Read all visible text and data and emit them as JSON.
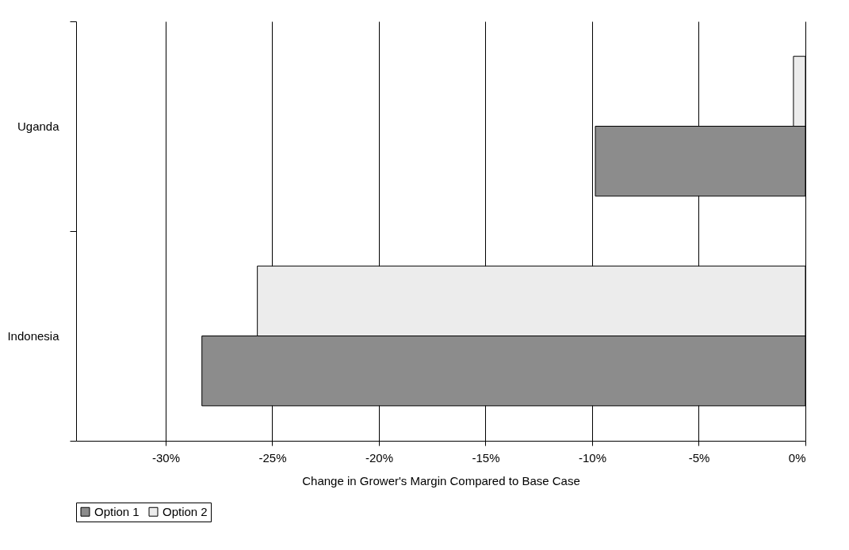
{
  "chart_data": {
    "type": "bar",
    "orientation": "horizontal",
    "xlabel": "Change in Grower's Margin Compared to Base Case",
    "categories": [
      "Uganda",
      "Indonesia"
    ],
    "series": [
      {
        "name": "Option 1",
        "color": "#8c8c8c",
        "values": [
          -9.85,
          -28.3
        ]
      },
      {
        "name": "Option 2",
        "color": "#ececec",
        "values": [
          -0.56,
          -25.7
        ]
      }
    ],
    "xlim": [
      -34.2,
      0
    ],
    "xticks": [
      {
        "value": -30,
        "label": "-30%"
      },
      {
        "value": -25,
        "label": "-25%"
      },
      {
        "value": -20,
        "label": "-20%"
      },
      {
        "value": -15,
        "label": "-15%"
      },
      {
        "value": -10,
        "label": "-10%"
      },
      {
        "value": -5,
        "label": "-5%"
      },
      {
        "value": 0,
        "label": "0%"
      }
    ],
    "grid": "x",
    "legend": "bottom"
  }
}
